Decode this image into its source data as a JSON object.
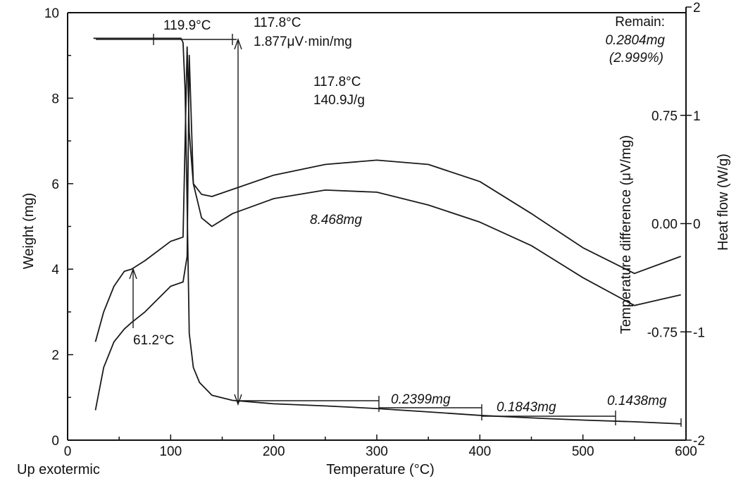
{
  "chart_data": {
    "type": "line",
    "xlabel": "Temperature (°C)",
    "ylabel_left": "Weight (mg)",
    "ylabel_right_inner": "Temperature difference (μV/mg)",
    "ylabel_right_outer": "Heat flow (W/g)",
    "corner_note": "Up exotermic",
    "xlim": [
      0,
      600
    ],
    "ylim_left": [
      0,
      10
    ],
    "ylim_right_outer": [
      -2,
      2
    ],
    "ylim_right_inner": [
      -1.5,
      1.5
    ],
    "x_ticks": [
      0,
      100,
      200,
      300,
      400,
      500,
      600
    ],
    "x_tick_labels": [
      "0",
      "100",
      "200",
      "300",
      "400",
      "500",
      "600"
    ],
    "y_left_ticks": [
      0,
      2,
      4,
      6,
      8,
      10
    ],
    "y_left_tick_labels": [
      "0",
      "2",
      "4",
      "6",
      "8",
      "10"
    ],
    "y_right_outer_ticks": [
      -2,
      -1,
      0,
      1,
      2
    ],
    "y_right_outer_tick_labels": [
      "-2",
      "-1",
      "0",
      "1",
      "2"
    ],
    "y_right_inner_ticks": [
      -0.75,
      0,
      0.75
    ],
    "y_right_inner_tick_labels": [
      "-0.75",
      "0.00",
      "0.75"
    ],
    "series": [
      {
        "axis": "left",
        "x": [
          25,
          80,
          110,
          112,
          114,
          116,
          118,
          122,
          128,
          140,
          160,
          200,
          250,
          300,
          350,
          400,
          450,
          500,
          550,
          595
        ],
        "y": [
          9.4,
          9.4,
          9.4,
          9.3,
          8.2,
          5.5,
          2.5,
          1.7,
          1.35,
          1.05,
          0.93,
          0.85,
          0.8,
          0.74,
          0.66,
          0.58,
          0.52,
          0.47,
          0.43,
          0.38
        ]
      },
      {
        "axis": "left",
        "x": [
          27,
          35,
          45,
          55,
          62,
          75,
          100,
          112,
          116,
          118,
          122,
          130,
          140,
          200,
          250,
          300,
          350,
          400,
          450,
          500,
          550,
          595
        ],
        "y": [
          2.3,
          3.0,
          3.6,
          3.95,
          4.0,
          4.2,
          4.65,
          4.75,
          9.2,
          7.2,
          6.0,
          5.75,
          5.7,
          6.2,
          6.45,
          6.55,
          6.45,
          6.05,
          5.3,
          4.5,
          3.9,
          4.3
        ]
      },
      {
        "axis": "left",
        "x": [
          27,
          35,
          45,
          55,
          62,
          75,
          100,
          112,
          116,
          118,
          122,
          130,
          140,
          160,
          200,
          250,
          300,
          350,
          400,
          450,
          500,
          550,
          595
        ],
        "y": [
          0.7,
          1.7,
          2.3,
          2.6,
          2.75,
          3.0,
          3.6,
          3.7,
          4.3,
          9.0,
          6.0,
          5.2,
          5.0,
          5.3,
          5.65,
          5.85,
          5.8,
          5.5,
          5.1,
          4.55,
          3.8,
          3.15,
          3.4
        ]
      }
    ],
    "annotations": [
      "119.9°C",
      "117.8°C",
      "1.877μV·min/mg",
      "117.8°C",
      "140.9J/g",
      "Remain:",
      "0.2804mg",
      "(2.999%)",
      "8.468mg",
      "61.2°C",
      "0.2399mg",
      "0.1843mg",
      "0.1438mg"
    ],
    "grid": false,
    "legend": "none"
  }
}
